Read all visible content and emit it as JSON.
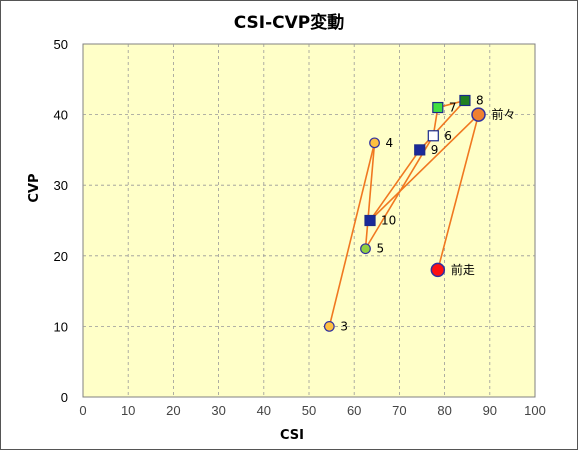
{
  "chart_data": {
    "type": "scatter",
    "title": "CSI-CVP変動",
    "xlabel": "CSI",
    "ylabel": "CVP",
    "xlim": [
      0,
      100
    ],
    "ylim": [
      0,
      50
    ],
    "x_ticks": [
      "0",
      "10",
      "20",
      "30",
      "40",
      "50",
      "60",
      "70",
      "80",
      "90",
      "100"
    ],
    "y_ticks": [
      "0",
      "10",
      "20",
      "30",
      "40",
      "50"
    ],
    "grid": true,
    "colors": {
      "plot_bg": "#ffffc8",
      "line": "#f07820",
      "grid": "#999999"
    },
    "path_order": [
      "3",
      "4",
      "5",
      "6",
      "7",
      "8",
      "9",
      "10",
      "前々",
      "前走"
    ],
    "points": [
      {
        "label": "3",
        "x": 54.5,
        "y": 10,
        "marker": "circle",
        "fill": "#ffc040",
        "stroke": "#3030a0"
      },
      {
        "label": "4",
        "x": 64.5,
        "y": 36,
        "marker": "circle",
        "fill": "#ffc040",
        "stroke": "#3030a0"
      },
      {
        "label": "5",
        "x": 62.5,
        "y": 21,
        "marker": "circle",
        "fill": "#90d040",
        "stroke": "#3030a0"
      },
      {
        "label": "6",
        "x": 77.5,
        "y": 37,
        "marker": "square",
        "fill": "#ffffff",
        "stroke": "#1a2a8a"
      },
      {
        "label": "7",
        "x": 78.5,
        "y": 41,
        "marker": "square",
        "fill": "#40e040",
        "stroke": "#1a2a8a"
      },
      {
        "label": "8",
        "x": 84.5,
        "y": 42,
        "marker": "square",
        "fill": "#208020",
        "stroke": "#1a2a8a"
      },
      {
        "label": "9",
        "x": 74.5,
        "y": 35,
        "marker": "square",
        "fill": "#1a2a9a",
        "stroke": "#1a2a8a"
      },
      {
        "label": "10",
        "x": 63.5,
        "y": 25,
        "marker": "square",
        "fill": "#1a2a9a",
        "stroke": "#1a2a8a"
      },
      {
        "label": "前々",
        "x": 87.5,
        "y": 40,
        "marker": "circle-large",
        "fill": "#f08030",
        "stroke": "#3030a0"
      },
      {
        "label": "前走",
        "x": 78.5,
        "y": 18,
        "marker": "circle-large",
        "fill": "#ff1010",
        "stroke": "#3030a0"
      }
    ]
  }
}
